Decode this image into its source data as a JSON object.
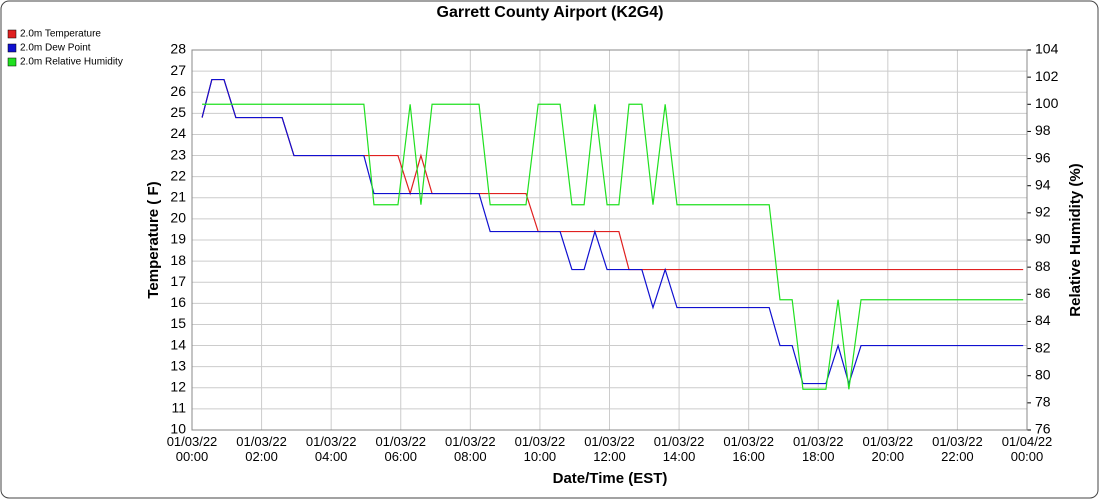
{
  "chart_data": {
    "type": "line",
    "title": "Garrett County Airport (K2G4)",
    "x_label": "Date/Time (EST)",
    "y_label": "Temperature ( F)",
    "y2_label": "Relative Humidity (%)",
    "x": [
      0.29,
      0.57,
      0.92,
      1.26,
      2.59,
      2.93,
      4.94,
      5.23,
      5.92,
      6.27,
      6.58,
      6.9,
      8.25,
      8.57,
      9.6,
      9.95,
      10.58,
      10.92,
      11.27,
      11.58,
      11.93,
      12.27,
      12.56,
      12.93,
      13.25,
      13.6,
      13.94,
      16.59,
      16.9,
      17.25,
      17.56,
      18.22,
      18.57,
      18.88,
      19.23,
      23.89
    ],
    "series": [
      {
        "name": "2.0m Temperature",
        "color": "#e02020",
        "values": [
          24.8,
          26.6,
          26.6,
          24.8,
          24.8,
          23,
          23,
          23,
          23,
          21.2,
          23,
          21.2,
          21.2,
          21.2,
          21.2,
          19.4,
          19.4,
          19.4,
          19.4,
          19.4,
          19.4,
          19.4,
          17.6,
          17.6,
          17.6,
          17.6,
          17.6,
          17.6,
          17.6,
          17.6,
          17.6,
          17.6,
          17.6,
          17.6,
          17.6,
          17.6
        ]
      },
      {
        "name": "2.0m Dew Point",
        "color": "#1010d0",
        "values": [
          24.8,
          26.6,
          26.6,
          24.8,
          24.8,
          23,
          23,
          21.2,
          21.2,
          21.2,
          21.2,
          21.2,
          21.2,
          19.4,
          19.4,
          19.4,
          19.4,
          17.6,
          17.6,
          19.4,
          17.6,
          17.6,
          17.6,
          17.6,
          15.8,
          17.6,
          15.8,
          15.8,
          14,
          14,
          12.2,
          12.2,
          14,
          12.2,
          14,
          14
        ]
      },
      {
        "name": "2.0m Relative Humidity",
        "color": "#20e020",
        "axis": "y2",
        "values": [
          100,
          100,
          100,
          100,
          100,
          100,
          100,
          92.6,
          92.6,
          100,
          92.6,
          100,
          100,
          92.6,
          92.6,
          100,
          100,
          92.6,
          92.6,
          100,
          92.6,
          92.6,
          100,
          100,
          92.6,
          100,
          92.6,
          92.6,
          85.6,
          85.6,
          79,
          79,
          85.6,
          79,
          85.6,
          85.6
        ]
      }
    ],
    "xlim": [
      0,
      24
    ],
    "xticks": [
      {
        "value": 0,
        "label": "01/03/22 00:00"
      },
      {
        "value": 2,
        "label": "01/03/22 02:00"
      },
      {
        "value": 4,
        "label": "01/03/22 04:00"
      },
      {
        "value": 6,
        "label": "01/03/22 06:00"
      },
      {
        "value": 8,
        "label": "01/03/22 08:00"
      },
      {
        "value": 10,
        "label": "01/03/22 10:00"
      },
      {
        "value": 12,
        "label": "01/03/22 12:00"
      },
      {
        "value": 14,
        "label": "01/03/22 14:00"
      },
      {
        "value": 16,
        "label": "01/03/22 16:00"
      },
      {
        "value": 18,
        "label": "01/03/22 18:00"
      },
      {
        "value": 20,
        "label": "01/03/22 20:00"
      },
      {
        "value": 22,
        "label": "01/03/22 22:00"
      },
      {
        "value": 24,
        "label": "01/04/22 00:00"
      }
    ],
    "ylim": [
      10,
      28
    ],
    "yticks": [
      10,
      11,
      12,
      13,
      14,
      15,
      16,
      17,
      18,
      19,
      20,
      21,
      22,
      23,
      24,
      25,
      26,
      27,
      28
    ],
    "y2lim": [
      76,
      104
    ],
    "y2ticks": [
      76,
      78,
      80,
      82,
      84,
      86,
      88,
      90,
      92,
      94,
      96,
      98,
      100,
      102,
      104
    ],
    "grid": true,
    "legend": "top-left"
  }
}
